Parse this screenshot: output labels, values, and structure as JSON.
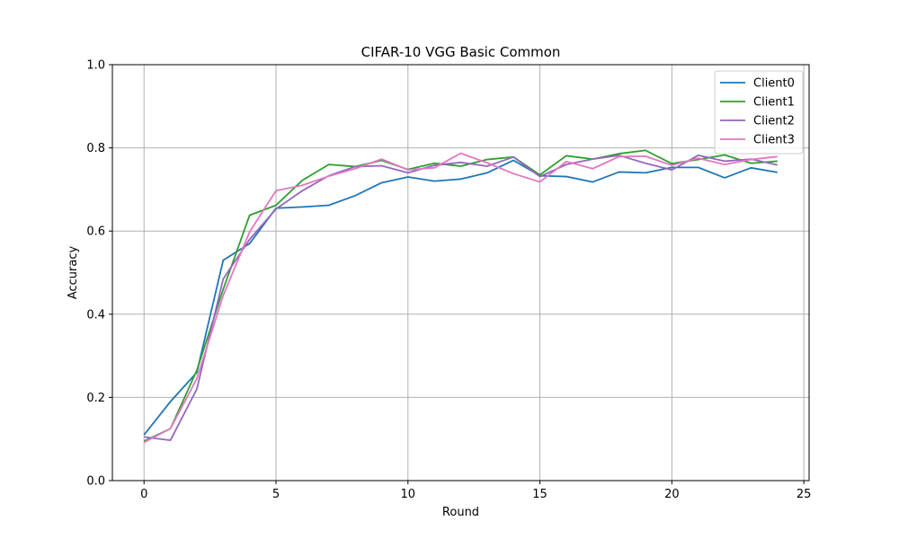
{
  "chart_data": {
    "type": "line",
    "title": "CIFAR-10 VGG Basic Common",
    "xlabel": "Round",
    "ylabel": "Accuracy",
    "xlim": [
      -1.2,
      25.2
    ],
    "ylim": [
      0,
      1.0
    ],
    "xticks": [
      0,
      5,
      10,
      15,
      20,
      25
    ],
    "yticks": [
      0.0,
      0.2,
      0.4,
      0.6,
      0.8,
      1.0
    ],
    "xtick_labels": [
      "0",
      "5",
      "10",
      "15",
      "20",
      "25"
    ],
    "ytick_labels": [
      "0.0",
      "0.2",
      "0.4",
      "0.6",
      "0.8",
      "1.0"
    ],
    "grid": true,
    "legend_position": "top-right",
    "x": [
      0,
      1,
      2,
      3,
      4,
      5,
      6,
      7,
      8,
      9,
      10,
      11,
      12,
      13,
      14,
      15,
      16,
      17,
      18,
      19,
      20,
      21,
      22,
      23,
      24
    ],
    "series": [
      {
        "name": "Client0",
        "color": "#1f77b4",
        "values": [
          0.11,
          0.19,
          0.26,
          0.53,
          0.57,
          0.655,
          0.658,
          0.662,
          0.685,
          0.716,
          0.73,
          0.72,
          0.725,
          0.74,
          0.77,
          0.733,
          0.731,
          0.718,
          0.742,
          0.74,
          0.753,
          0.753,
          0.728,
          0.752,
          0.741
        ]
      },
      {
        "name": "Client1",
        "color": "#2ca02c",
        "values": [
          0.095,
          0.125,
          0.265,
          0.46,
          0.638,
          0.662,
          0.722,
          0.76,
          0.755,
          0.77,
          0.748,
          0.763,
          0.756,
          0.772,
          0.778,
          0.735,
          0.781,
          0.773,
          0.786,
          0.794,
          0.762,
          0.772,
          0.783,
          0.763,
          0.768
        ]
      },
      {
        "name": "Client2",
        "color": "#9467bd",
        "values": [
          0.105,
          0.097,
          0.22,
          0.485,
          0.58,
          0.653,
          0.697,
          0.733,
          0.755,
          0.757,
          0.74,
          0.758,
          0.765,
          0.756,
          0.778,
          0.731,
          0.76,
          0.773,
          0.782,
          0.763,
          0.747,
          0.782,
          0.768,
          0.773,
          0.759
        ]
      },
      {
        "name": "Client3",
        "color": "#e377c2",
        "values": [
          0.092,
          0.125,
          0.245,
          0.445,
          0.598,
          0.697,
          0.71,
          0.732,
          0.75,
          0.773,
          0.747,
          0.752,
          0.787,
          0.764,
          0.738,
          0.718,
          0.767,
          0.75,
          0.779,
          0.78,
          0.758,
          0.775,
          0.76,
          0.772,
          0.779
        ]
      }
    ]
  }
}
